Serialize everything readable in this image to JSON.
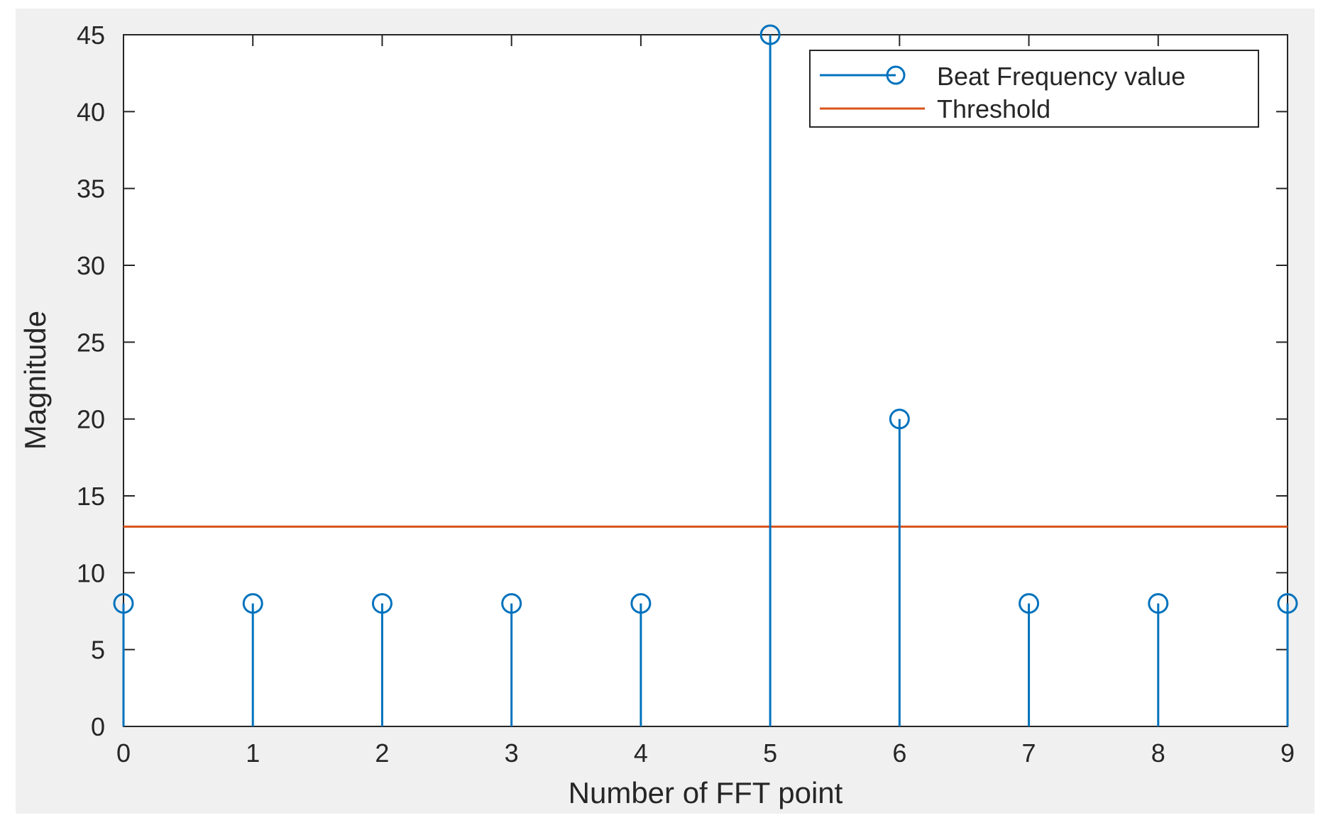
{
  "chart_data": {
    "type": "stem",
    "xlabel": "Number of FFT point",
    "ylabel": "Magnitude",
    "xlim": [
      0,
      9
    ],
    "ylim": [
      0,
      45
    ],
    "xticks": [
      0,
      1,
      2,
      3,
      4,
      5,
      6,
      7,
      8,
      9
    ],
    "yticks": [
      0,
      5,
      10,
      15,
      20,
      25,
      30,
      35,
      40,
      45
    ],
    "grid": false,
    "legend_position": "top-right",
    "series": [
      {
        "name": "Beat Frequency value",
        "kind": "stem",
        "color": "#0072BD",
        "x": [
          0,
          1,
          2,
          3,
          4,
          5,
          6,
          7,
          8,
          9
        ],
        "values": [
          8,
          8,
          8,
          8,
          8,
          45,
          20,
          8,
          8,
          8
        ]
      },
      {
        "name": "Threshold",
        "kind": "hline",
        "color": "#D95319",
        "value": 13
      }
    ]
  }
}
